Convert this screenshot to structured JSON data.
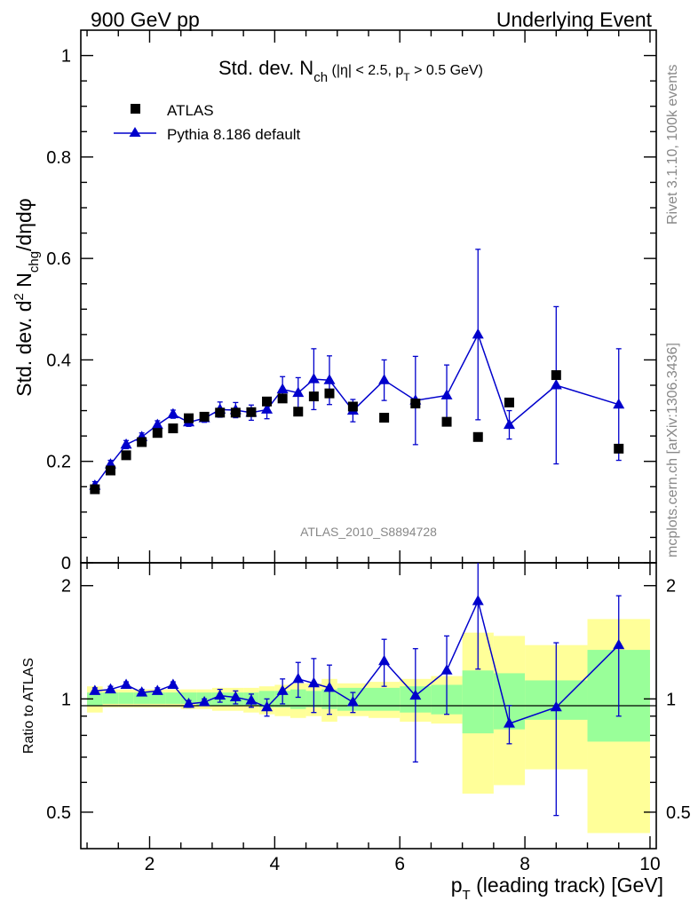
{
  "header": {
    "left": "900 GeV pp",
    "right": "Underlying Event"
  },
  "title": {
    "main": "Std. dev. N",
    "sub": "ch",
    "cut1": " (|η| < 2.5, p",
    "cut_sub": "T",
    "cut2": " > 0.5 GeV)"
  },
  "ylabel_main": {
    "p1": "Std. dev. d",
    "p2": "2",
    "p3": " N",
    "p4": "chg",
    "p5": "/dηdφ"
  },
  "ylabel_ratio": "Ratio to ATLAS",
  "xlabel": {
    "p1": "p",
    "p2": "T",
    "p3": " (leading track) [GeV]"
  },
  "side_text": {
    "rivet": "Rivet 3.1.10,  100k events",
    "mcplots": "mcplots.cern.ch [arXiv:1306.3436]"
  },
  "analysis_tag": "ATLAS_2010_S8894728",
  "colors": {
    "mc": "#0000cc",
    "band_inner": "#99ff99",
    "band_outer": "#ffff99",
    "data": "#000000",
    "grey": "#888888"
  },
  "chart_data": [
    {
      "type": "scatter",
      "panel": "main",
      "title": "Std. dev. Nch (|η| < 2.5, pT > 0.5 GeV)",
      "xlabel": "pT (leading track) [GeV]",
      "ylabel": "Std. dev. d2 Nchg/dηdφ",
      "xlim": [
        0.9,
        10.1
      ],
      "ylim": [
        0,
        1.05
      ],
      "x_ticks": [
        2,
        4,
        6,
        8,
        10
      ],
      "y_ticks": [
        0,
        0.2,
        0.4,
        0.6,
        0.8,
        1
      ],
      "y_tick_labels": [
        "0",
        "0.2",
        "0.4",
        "0.6",
        "0.8",
        "1"
      ],
      "legend_position": "top-left",
      "x": [
        1.125,
        1.375,
        1.625,
        1.875,
        2.125,
        2.375,
        2.625,
        2.875,
        3.125,
        3.375,
        3.625,
        3.875,
        4.125,
        4.375,
        4.625,
        4.875,
        5.25,
        5.75,
        6.25,
        6.75,
        7.25,
        7.75,
        8.5,
        9.5
      ],
      "series": [
        {
          "name": "ATLAS",
          "marker": "square",
          "values": [
            0.145,
            0.182,
            0.212,
            0.238,
            0.256,
            0.265,
            0.285,
            0.288,
            0.296,
            0.296,
            0.297,
            0.318,
            0.324,
            0.298,
            0.328,
            0.334,
            0.308,
            0.286,
            0.314,
            0.278,
            0.248,
            0.316,
            0.37,
            0.225
          ]
        },
        {
          "name": "Pythia 8.186 default",
          "marker": "triangle",
          "values": [
            0.152,
            0.194,
            0.233,
            0.248,
            0.272,
            0.293,
            0.277,
            0.285,
            0.302,
            0.301,
            0.296,
            0.302,
            0.342,
            0.335,
            0.362,
            0.36,
            0.3,
            0.36,
            0.32,
            0.33,
            0.45,
            0.272,
            0.35,
            0.312
          ],
          "errors": [
            0.008,
            0.008,
            0.008,
            0.008,
            0.008,
            0.008,
            0.008,
            0.008,
            0.015,
            0.015,
            0.015,
            0.018,
            0.025,
            0.03,
            0.06,
            0.048,
            0.022,
            0.04,
            0.087,
            0.06,
            0.168,
            0.028,
            0.155,
            0.11
          ]
        }
      ]
    },
    {
      "type": "scatter",
      "panel": "ratio",
      "ylabel": "Ratio to ATLAS",
      "xlim": [
        0.9,
        10.1
      ],
      "ylim": [
        0.4,
        2.3
      ],
      "y_ticks": [
        0.5,
        1,
        2
      ],
      "y_tick_labels": [
        "0.5",
        "1",
        "2"
      ],
      "x": [
        1.125,
        1.375,
        1.625,
        1.875,
        2.125,
        2.375,
        2.625,
        2.875,
        3.125,
        3.375,
        3.625,
        3.875,
        4.125,
        4.375,
        4.625,
        4.875,
        5.25,
        5.75,
        6.25,
        6.75,
        7.25,
        7.75,
        8.5,
        9.5
      ],
      "bins": [
        [
          1.0,
          1.25
        ],
        [
          1.25,
          1.5
        ],
        [
          1.5,
          1.75
        ],
        [
          1.75,
          2.0
        ],
        [
          2.0,
          2.25
        ],
        [
          2.25,
          2.5
        ],
        [
          2.5,
          2.75
        ],
        [
          2.75,
          3.0
        ],
        [
          3.0,
          3.25
        ],
        [
          3.25,
          3.5
        ],
        [
          3.5,
          3.75
        ],
        [
          3.75,
          4.0
        ],
        [
          4.0,
          4.25
        ],
        [
          4.25,
          4.5
        ],
        [
          4.5,
          4.75
        ],
        [
          4.75,
          5.0
        ],
        [
          5.0,
          5.5
        ],
        [
          5.5,
          6.0
        ],
        [
          6.0,
          6.5
        ],
        [
          6.5,
          7.0
        ],
        [
          7.0,
          7.5
        ],
        [
          7.5,
          8.0
        ],
        [
          8.0,
          9.0
        ],
        [
          9.0,
          10.0
        ]
      ],
      "band_inner": [
        [
          0.96,
          1.04
        ],
        [
          0.97,
          1.04
        ],
        [
          0.97,
          1.04
        ],
        [
          0.97,
          1.04
        ],
        [
          0.97,
          1.04
        ],
        [
          0.97,
          1.04
        ],
        [
          0.97,
          1.04
        ],
        [
          0.96,
          1.04
        ],
        [
          0.96,
          1.04
        ],
        [
          0.96,
          1.04
        ],
        [
          0.96,
          1.04
        ],
        [
          0.95,
          1.05
        ],
        [
          0.95,
          1.05
        ],
        [
          0.94,
          1.06
        ],
        [
          0.95,
          1.05
        ],
        [
          0.94,
          1.06
        ],
        [
          0.93,
          1.07
        ],
        [
          0.93,
          1.07
        ],
        [
          0.92,
          1.08
        ],
        [
          0.91,
          1.09
        ],
        [
          0.81,
          1.19
        ],
        [
          0.83,
          1.17
        ],
        [
          0.88,
          1.12
        ],
        [
          0.77,
          1.35
        ]
      ],
      "band_outer": [
        [
          0.92,
          1.08
        ],
        [
          0.95,
          1.06
        ],
        [
          0.95,
          1.06
        ],
        [
          0.95,
          1.06
        ],
        [
          0.95,
          1.06
        ],
        [
          0.95,
          1.06
        ],
        [
          0.94,
          1.06
        ],
        [
          0.94,
          1.06
        ],
        [
          0.93,
          1.07
        ],
        [
          0.93,
          1.07
        ],
        [
          0.92,
          1.07
        ],
        [
          0.91,
          1.08
        ],
        [
          0.9,
          1.09
        ],
        [
          0.89,
          1.1
        ],
        [
          0.9,
          1.1
        ],
        [
          0.87,
          1.13
        ],
        [
          0.9,
          1.1
        ],
        [
          0.89,
          1.11
        ],
        [
          0.87,
          1.13
        ],
        [
          0.86,
          1.15
        ],
        [
          0.56,
          1.5
        ],
        [
          0.59,
          1.47
        ],
        [
          0.65,
          1.39
        ],
        [
          0.44,
          1.63
        ]
      ],
      "series": [
        {
          "name": "Pythia 8.186 default",
          "marker": "triangle",
          "values": [
            1.05,
            1.06,
            1.09,
            1.04,
            1.05,
            1.09,
            0.97,
            0.98,
            1.02,
            1.01,
            0.99,
            0.95,
            1.05,
            1.13,
            1.1,
            1.07,
            0.98,
            1.26,
            1.02,
            1.19,
            1.82,
            0.86,
            0.95,
            1.39
          ],
          "errors": [
            0.02,
            0.02,
            0.02,
            0.02,
            0.02,
            0.02,
            0.02,
            0.02,
            0.04,
            0.04,
            0.04,
            0.05,
            0.08,
            0.12,
            0.18,
            0.16,
            0.06,
            0.18,
            0.34,
            0.28,
            0.62,
            0.1,
            0.46,
            0.49
          ]
        }
      ]
    }
  ]
}
